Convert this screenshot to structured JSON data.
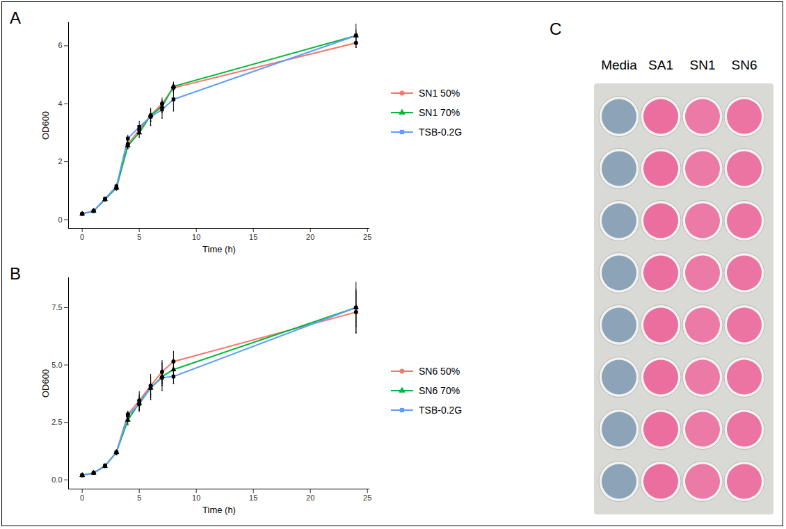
{
  "chart_data": [
    {
      "type": "line",
      "panel": "A",
      "x_label": "Time (h)",
      "y_label": "OD600",
      "x": [
        0,
        1,
        2,
        3,
        4,
        5,
        6,
        7,
        8,
        24
      ],
      "xlim": [
        -1.2,
        25.2
      ],
      "xticks": [
        0,
        5,
        10,
        15,
        20,
        25
      ],
      "ylim": [
        -0.3,
        6.8
      ],
      "yticks": [
        0,
        2,
        4,
        6
      ],
      "grid": false,
      "legend": "right",
      "series": [
        {
          "name": "SN1 50%",
          "color": "#F8766D",
          "marker": "circle",
          "values": [
            0.2,
            0.3,
            0.7,
            1.1,
            2.6,
            3.1,
            3.6,
            4.0,
            4.55,
            6.1
          ],
          "errors": [
            0.03,
            0.03,
            0.05,
            0.08,
            0.12,
            0.15,
            0.2,
            0.2,
            0.15,
            0.15
          ]
        },
        {
          "name": "SN1 70%",
          "color": "#00BA38",
          "marker": "triangle",
          "values": [
            0.2,
            0.3,
            0.7,
            1.1,
            2.55,
            3.0,
            3.6,
            3.9,
            4.6,
            6.35
          ],
          "errors": [
            0.03,
            0.03,
            0.05,
            0.08,
            0.1,
            0.15,
            0.2,
            0.2,
            0.15,
            0.2
          ]
        },
        {
          "name": "TSB-0.2G",
          "color": "#619CFF",
          "marker": "square",
          "values": [
            0.2,
            0.3,
            0.72,
            1.15,
            2.8,
            3.2,
            3.55,
            3.8,
            4.15,
            6.35
          ],
          "errors": [
            0.03,
            0.03,
            0.05,
            0.08,
            0.12,
            0.2,
            0.3,
            0.3,
            0.4,
            0.4
          ]
        }
      ]
    },
    {
      "type": "line",
      "panel": "B",
      "x_label": "Time (h)",
      "y_label": "OD600",
      "x": [
        0,
        1,
        2,
        3,
        4,
        5,
        6,
        7,
        8,
        24
      ],
      "xlim": [
        -1.2,
        25.2
      ],
      "xticks": [
        0,
        5,
        10,
        15,
        20,
        25
      ],
      "ylim": [
        -0.4,
        8.8
      ],
      "yticks": [
        {
          "value": 0,
          "label": "0.0"
        },
        {
          "value": 2.5,
          "label": "2.5"
        },
        {
          "value": 5,
          "label": "5.0"
        },
        {
          "value": 7.5,
          "label": "7.5"
        }
      ],
      "grid": false,
      "legend": "right",
      "series": [
        {
          "name": "SN6 50%",
          "color": "#F8766D",
          "marker": "circle",
          "values": [
            0.2,
            0.3,
            0.6,
            1.2,
            2.85,
            3.45,
            4.1,
            4.7,
            5.15,
            7.3
          ],
          "errors": [
            0.05,
            0.05,
            0.05,
            0.1,
            0.15,
            0.4,
            0.5,
            0.5,
            0.45,
            0.9
          ]
        },
        {
          "name": "SN6 70%",
          "color": "#00BA38",
          "marker": "triangle",
          "values": [
            0.2,
            0.3,
            0.6,
            1.2,
            2.6,
            3.35,
            4.0,
            4.5,
            4.8,
            7.5
          ],
          "errors": [
            0.05,
            0.05,
            0.05,
            0.1,
            0.2,
            0.35,
            0.5,
            0.6,
            0.4,
            0.8
          ]
        },
        {
          "name": "TSB-0.2G",
          "color": "#619CFF",
          "marker": "square",
          "values": [
            0.2,
            0.3,
            0.62,
            1.2,
            2.8,
            3.3,
            4.0,
            4.45,
            4.5,
            7.5
          ],
          "errors": [
            0.05,
            0.05,
            0.05,
            0.1,
            0.15,
            0.3,
            0.3,
            0.35,
            0.3,
            1.1
          ]
        }
      ]
    }
  ],
  "plate": {
    "panel": "C",
    "wells_per_column": 8,
    "columns": [
      {
        "label": "Media",
        "color": "#8da3b8"
      },
      {
        "label": "SA1",
        "color": "#ea6f9f"
      },
      {
        "label": "SN1",
        "color": "#ec7aa6"
      },
      {
        "label": "SN6",
        "color": "#eb74a3"
      }
    ]
  }
}
